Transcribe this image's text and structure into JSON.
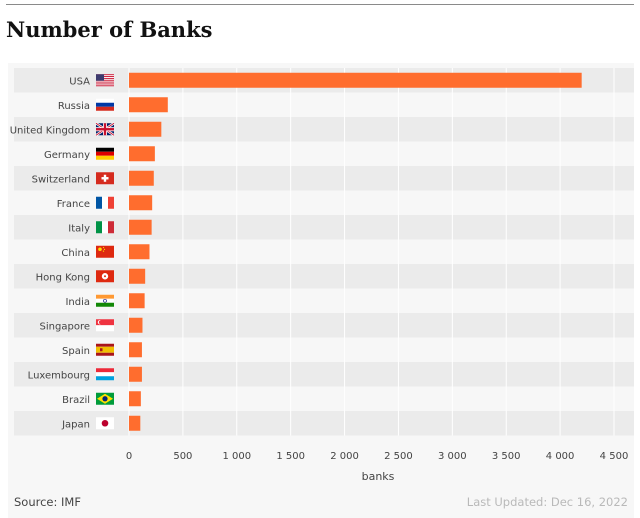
{
  "page_title": "Number of Banks",
  "source_text": "Source: IMF",
  "updated_text": "Last Updated: Dec 16, 2022",
  "bar_color": "#ff6d2e",
  "chart_data": {
    "type": "bar",
    "orientation": "horizontal",
    "title": "Number of Banks",
    "xlabel": "banks",
    "ylabel": "",
    "xlim": [
      0,
      4500
    ],
    "x_ticks": [
      0,
      500,
      1000,
      1500,
      2000,
      2500,
      3000,
      3500,
      4000,
      4500
    ],
    "x_tick_labels": [
      "0",
      "500",
      "1 000",
      "1 500",
      "2 000",
      "2 500",
      "3 000",
      "3 500",
      "4 000",
      "4 500"
    ],
    "grid": true,
    "categories": [
      "USA",
      "Russia",
      "United Kingdom",
      "Germany",
      "Switzerland",
      "France",
      "Italy",
      "China",
      "Hong Kong",
      "India",
      "Singapore",
      "Spain",
      "Luxembourg",
      "Brazil",
      "Japan"
    ],
    "flags": [
      "us-flag-icon",
      "russia-flag-icon",
      "uk-flag-icon",
      "germany-flag-icon",
      "switzerland-flag-icon",
      "france-flag-icon",
      "italy-flag-icon",
      "china-flag-icon",
      "hong-kong-flag-icon",
      "india-flag-icon",
      "singapore-flag-icon",
      "spain-flag-icon",
      "luxembourg-flag-icon",
      "brazil-flag-icon",
      "japan-flag-icon"
    ],
    "values": [
      4200,
      360,
      300,
      240,
      230,
      215,
      210,
      190,
      150,
      145,
      125,
      120,
      120,
      110,
      105
    ]
  }
}
